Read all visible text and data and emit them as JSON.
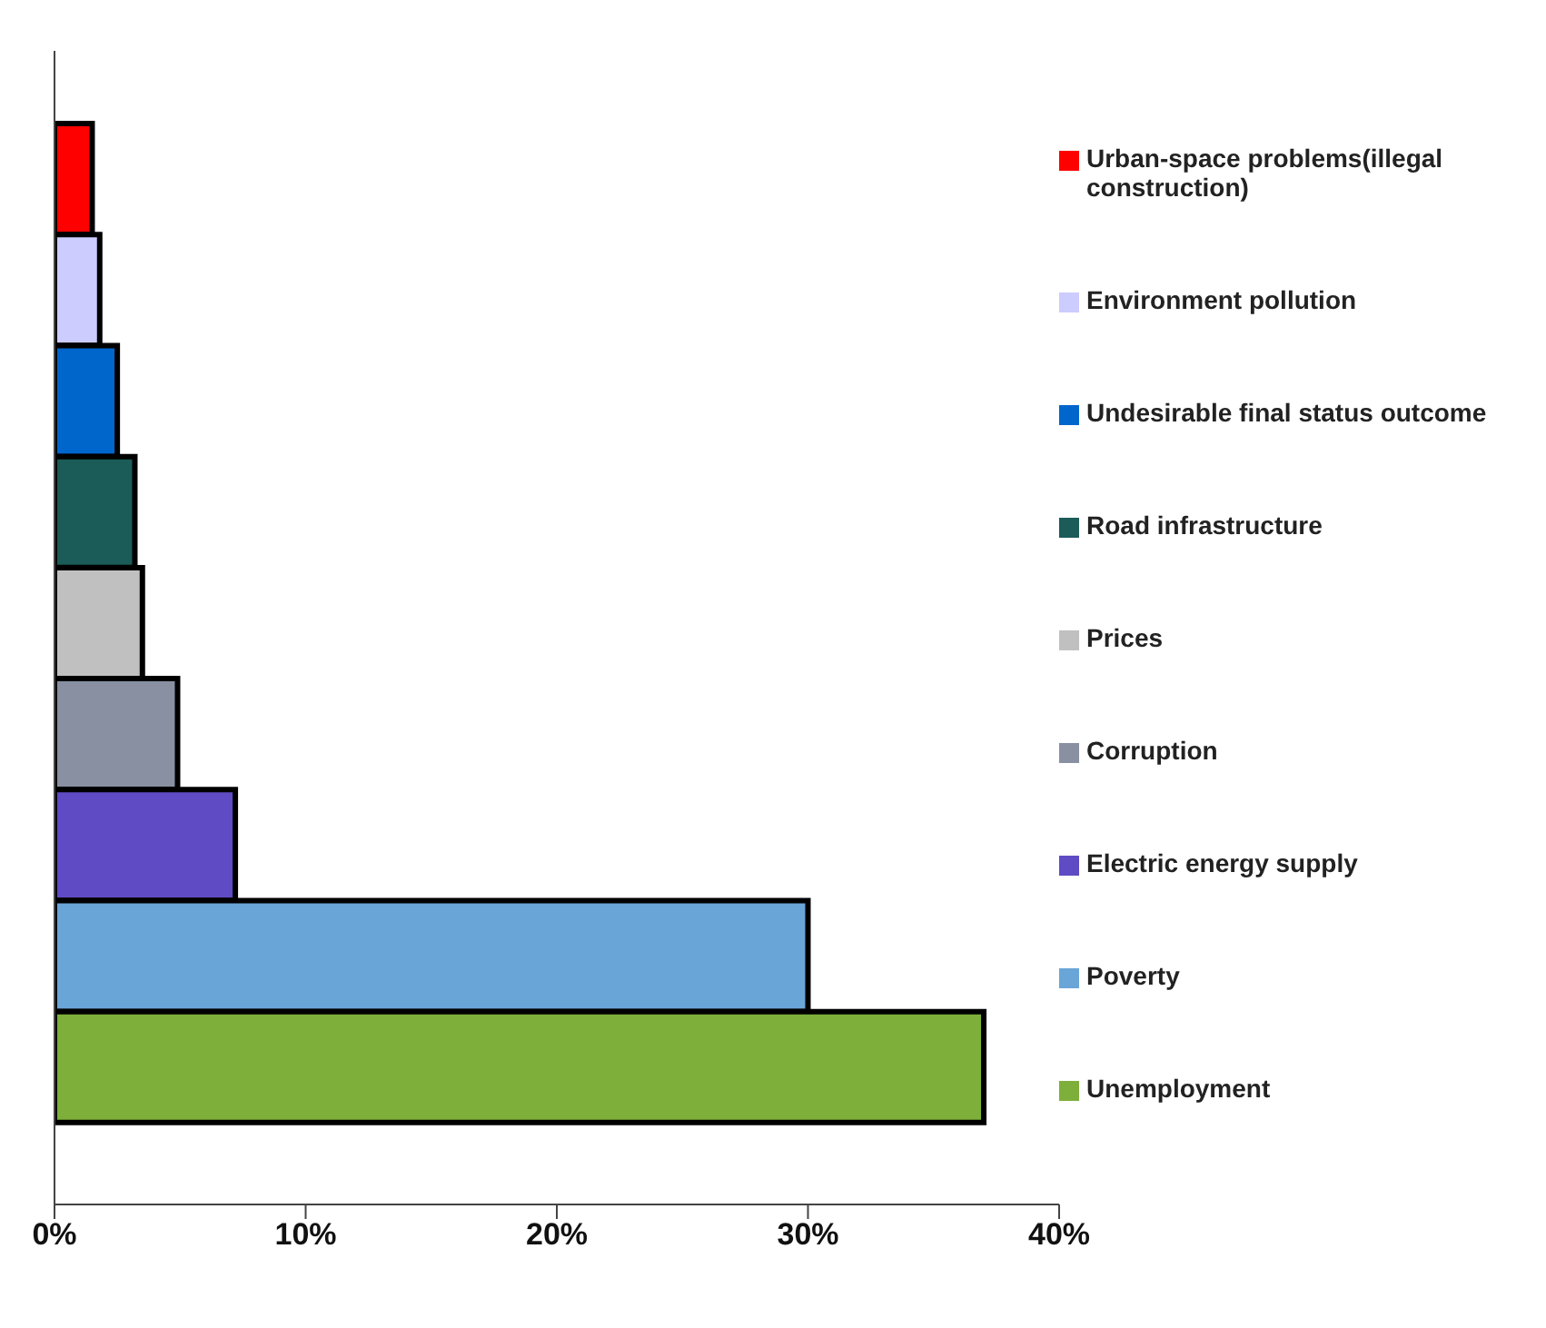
{
  "chart_data": {
    "type": "bar",
    "orientation": "horizontal",
    "stacked": true,
    "categories": [
      null,
      null,
      null,
      null,
      null,
      null,
      null,
      null,
      null
    ],
    "series": [
      {
        "name": "Urban-space problems(illegal construction)",
        "color": "#ff0000",
        "values": [
          1.5,
          null,
          null,
          null,
          null,
          null,
          null,
          null,
          null
        ]
      },
      {
        "name": "Environment pollution",
        "color": "#ccccff",
        "values": [
          null,
          1.8,
          null,
          null,
          null,
          null,
          null,
          null,
          null
        ]
      },
      {
        "name": "Undesirable final status outcome",
        "color": "#0066cc",
        "values": [
          null,
          null,
          2.5,
          null,
          null,
          null,
          null,
          null,
          null
        ]
      },
      {
        "name": "Road infrastructure",
        "color": "#1b5b58",
        "values": [
          null,
          null,
          null,
          3.2,
          null,
          null,
          null,
          null,
          null
        ]
      },
      {
        "name": "Prices",
        "color": "#c0c0c0",
        "values": [
          null,
          null,
          null,
          null,
          3.5,
          null,
          null,
          null,
          null
        ]
      },
      {
        "name": "Corruption",
        "color": "#8890a2",
        "values": [
          null,
          null,
          null,
          null,
          null,
          4.9,
          null,
          null,
          null
        ]
      },
      {
        "name": "Electric energy supply",
        "color": "#5f4bc4",
        "values": [
          null,
          null,
          null,
          null,
          null,
          null,
          7.2,
          null,
          null
        ]
      },
      {
        "name": "Poverty",
        "color": "#6aa5d8",
        "values": [
          null,
          null,
          null,
          null,
          null,
          null,
          null,
          30,
          null
        ]
      },
      {
        "name": "Unemployment",
        "color": "#7daf3a",
        "values": [
          null,
          null,
          null,
          null,
          null,
          null,
          null,
          null,
          37
        ]
      }
    ],
    "xlim": [
      0,
      40
    ],
    "xticks": [
      {
        "value": 0,
        "label": "0%"
      },
      {
        "value": 10,
        "label": "10%"
      },
      {
        "value": 20,
        "label": "20%"
      },
      {
        "value": 30,
        "label": "30%"
      },
      {
        "value": 40,
        "label": "40%"
      }
    ],
    "tick_labels": "x",
    "legend": "right"
  }
}
